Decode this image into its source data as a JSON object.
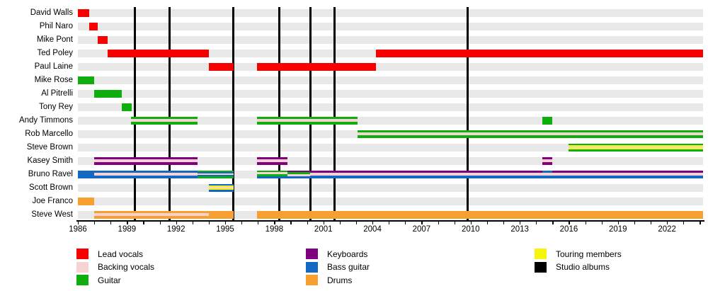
{
  "chart_data": {
    "type": "timeline",
    "title": "Band members timeline (gantt-style, Wikipedia EasyTimeline)",
    "x_axis": {
      "start": 1986,
      "end": 2024.2,
      "tick_interval_years": 3,
      "tick_labels": [
        "1986",
        "1989",
        "1992",
        "1995",
        "1998",
        "2001",
        "2004",
        "2007",
        "2010",
        "2013",
        "2016",
        "2019",
        "2022"
      ],
      "minor_tick_every_year": true
    },
    "palette": {
      "lead_vocals": "#f70000",
      "backing_vocals": "#f6d2d2",
      "guitar": "#0fae0f",
      "keyboards": "#800080",
      "bass": "#1268c3",
      "drums": "#f7a02f",
      "touring": "#f5f50e",
      "albums": "#000000",
      "row_background": "#e8e8e8"
    },
    "albums_years": [
      1989.5,
      1991.6,
      1995.5,
      1998.3,
      2000.2,
      2001.7,
      2009.8
    ],
    "members": [
      {
        "name": "David Walls",
        "segments": [
          {
            "from": 1986.0,
            "to": 1986.7,
            "stripes": [
              "lead_vocals"
            ]
          }
        ]
      },
      {
        "name": "Phil Naro",
        "segments": [
          {
            "from": 1986.7,
            "to": 1987.2,
            "stripes": [
              "lead_vocals"
            ]
          }
        ]
      },
      {
        "name": "Mike Pont",
        "segments": [
          {
            "from": 1987.2,
            "to": 1987.8,
            "stripes": [
              "lead_vocals"
            ]
          }
        ]
      },
      {
        "name": "Ted Poley",
        "segments": [
          {
            "from": 1987.8,
            "to": 1994.0,
            "stripes": [
              "lead_vocals"
            ]
          },
          {
            "from": 2004.2,
            "to": 2024.2,
            "stripes": [
              "lead_vocals"
            ]
          }
        ]
      },
      {
        "name": "Paul Laine",
        "segments": [
          {
            "from": 1994.0,
            "to": 1995.5,
            "stripes": [
              "lead_vocals"
            ]
          },
          {
            "from": 1996.95,
            "to": 2004.2,
            "stripes": [
              "lead_vocals"
            ]
          }
        ]
      },
      {
        "name": "Mike Rose",
        "segments": [
          {
            "from": 1986.0,
            "to": 1987.0,
            "stripes": [
              "guitar"
            ]
          }
        ]
      },
      {
        "name": "Al Pitrelli",
        "segments": [
          {
            "from": 1987.0,
            "to": 1988.7,
            "stripes": [
              "guitar"
            ]
          }
        ]
      },
      {
        "name": "Tony Rey",
        "segments": [
          {
            "from": 1988.7,
            "to": 1989.3,
            "stripes": [
              "guitar"
            ]
          }
        ]
      },
      {
        "name": "Andy Timmons",
        "segments": [
          {
            "from": 1989.25,
            "to": 1993.3,
            "stripes": [
              "guitar",
              "backing_vocals",
              "guitar"
            ]
          },
          {
            "from": 1996.95,
            "to": 2003.1,
            "stripes": [
              "guitar",
              "backing_vocals",
              "guitar"
            ]
          },
          {
            "from": 2014.4,
            "to": 2015.0,
            "stripes": [
              "guitar"
            ]
          }
        ]
      },
      {
        "name": "Rob Marcello",
        "segments": [
          {
            "from": 2003.1,
            "to": 2024.2,
            "stripes": [
              "guitar",
              "backing_vocals",
              "guitar"
            ]
          }
        ]
      },
      {
        "name": "Steve Brown",
        "segments": [
          {
            "from": 2016.0,
            "to": 2024.2,
            "stripes": [
              "guitar",
              "touring",
              "backing_vocals",
              "touring",
              "guitar"
            ]
          }
        ]
      },
      {
        "name": "Kasey Smith",
        "segments": [
          {
            "from": 1987.0,
            "to": 1993.3,
            "stripes": [
              "keyboards",
              "backing_vocals",
              "keyboards"
            ]
          },
          {
            "from": 1996.95,
            "to": 1998.8,
            "stripes": [
              "keyboards",
              "backing_vocals",
              "keyboards"
            ]
          },
          {
            "from": 2014.4,
            "to": 2015.0,
            "stripes": [
              "keyboards",
              "backing_vocals",
              "keyboards"
            ]
          }
        ]
      },
      {
        "name": "Bruno Ravel",
        "segments": [
          {
            "from": 1986.0,
            "to": 1987.0,
            "stripes": [
              "bass"
            ]
          },
          {
            "from": 1987.0,
            "to": 1993.3,
            "stripes": [
              "bass",
              "backing_vocals",
              "bass"
            ]
          },
          {
            "from": 1993.3,
            "to": 1995.5,
            "stripes": [
              "guitar",
              "bass",
              "backing_vocals",
              "bass",
              "guitar"
            ]
          },
          {
            "from": 1996.95,
            "to": 1998.8,
            "stripes": [
              "guitar",
              "backing_vocals",
              "guitar",
              "bass"
            ]
          },
          {
            "from": 1998.8,
            "to": 2000.2,
            "stripes": [
              "keyboards",
              "guitar",
              "backing_vocals",
              "bass"
            ]
          },
          {
            "from": 2000.2,
            "to": 2014.4,
            "stripes": [
              "keyboards",
              "backing_vocals",
              "bass"
            ]
          },
          {
            "from": 2014.4,
            "to": 2015.0,
            "stripes": [
              "bass",
              "backing_vocals",
              "bass"
            ]
          },
          {
            "from": 2015.0,
            "to": 2024.2,
            "stripes": [
              "keyboards",
              "backing_vocals",
              "bass"
            ]
          }
        ]
      },
      {
        "name": "Scott Brown",
        "segments": [
          {
            "from": 1994.0,
            "to": 1995.5,
            "stripes": [
              "bass",
              "touring",
              "backing_vocals",
              "touring",
              "bass"
            ]
          }
        ]
      },
      {
        "name": "Joe Franco",
        "segments": [
          {
            "from": 1986.0,
            "to": 1987.0,
            "stripes": [
              "drums"
            ]
          }
        ]
      },
      {
        "name": "Steve West",
        "segments": [
          {
            "from": 1987.0,
            "to": 1994.0,
            "stripes": [
              "drums",
              "backing_vocals",
              "drums"
            ]
          },
          {
            "from": 1994.0,
            "to": 1995.5,
            "stripes": [
              "drums"
            ]
          },
          {
            "from": 1996.95,
            "to": 2024.2,
            "stripes": [
              "drums"
            ]
          }
        ]
      }
    ],
    "legend": {
      "columns": [
        [
          {
            "label": "Lead vocals",
            "role": "lead_vocals"
          },
          {
            "label": "Backing vocals",
            "role": "backing_vocals"
          },
          {
            "label": "Guitar",
            "role": "guitar"
          }
        ],
        [
          {
            "label": "Keyboards",
            "role": "keyboards"
          },
          {
            "label": "Bass guitar",
            "role": "bass"
          },
          {
            "label": "Drums",
            "role": "drums"
          }
        ],
        [
          {
            "label": "Touring members",
            "role": "touring"
          },
          {
            "label": "Studio albums",
            "role": "albums"
          }
        ]
      ]
    }
  }
}
